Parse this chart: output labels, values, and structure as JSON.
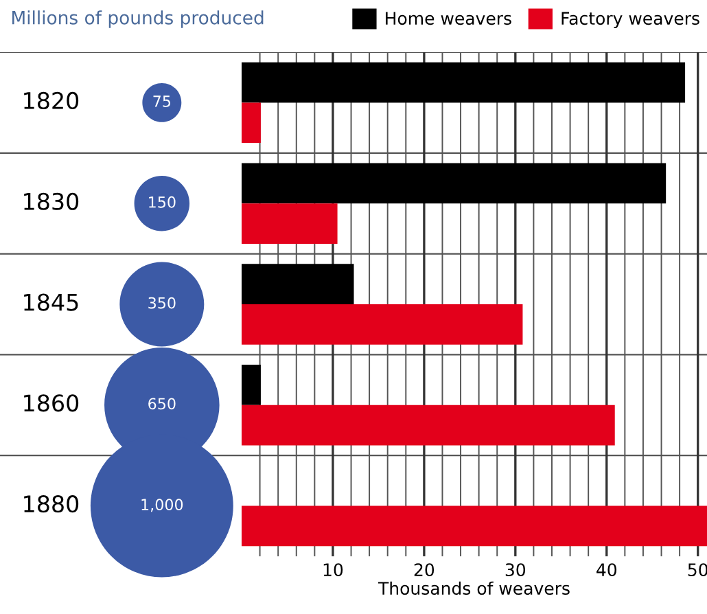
{
  "chart_data": [
    {
      "type": "other",
      "title": "Millions of pounds produced",
      "categories": [
        "1820",
        "1830",
        "1845",
        "1860",
        "1880"
      ],
      "values": [
        75,
        150,
        350,
        650,
        1000
      ],
      "value_labels": [
        "75",
        "150",
        "350",
        "650",
        "1,000"
      ],
      "color": "#3c5aa6"
    },
    {
      "type": "bar",
      "orientation": "horizontal",
      "categories": [
        null,
        null,
        null,
        null,
        null
      ],
      "xlabel": "Thousands of weavers",
      "xlim": [
        0,
        51
      ],
      "xticks": [
        10,
        20,
        30,
        40,
        50
      ],
      "grid": "x",
      "legend": "top right",
      "tick_labels": "x",
      "series": [
        {
          "name": "Home weavers",
          "color": "#000000",
          "values": [
            48.6,
            46.5,
            12.3,
            2.1,
            null
          ]
        },
        {
          "name": "Factory weavers",
          "color": "#e3001b",
          "values": [
            2.1,
            10.5,
            30.8,
            40.9,
            51
          ]
        }
      ]
    }
  ]
}
